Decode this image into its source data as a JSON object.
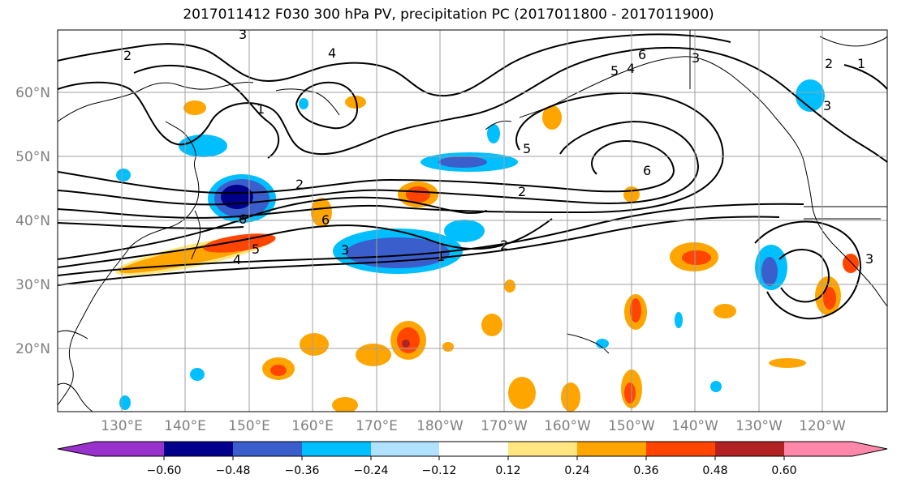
{
  "title": "2017011412 F030 300 hPa PV, precipitation PC (2017011800 - 2017011900)",
  "map": {
    "lat_labels": [
      "60°N",
      "50°N",
      "40°N",
      "30°N",
      "20°N"
    ],
    "lon_labels": [
      "130°E",
      "140°E",
      "150°E",
      "160°E",
      "170°E",
      "180°W",
      "170°W",
      "160°W",
      "150°W",
      "140°W",
      "130°W",
      "120°W"
    ],
    "pv_contour_labels": [
      "3",
      "2",
      "4",
      "1",
      "2",
      "6",
      "2",
      "6",
      "5",
      "4",
      "1",
      "3",
      "2",
      "4",
      "5",
      "6",
      "6",
      "3",
      "5",
      "3",
      "2",
      "1",
      "3"
    ],
    "colors": {
      "ocean": "#ffffff",
      "coast": "#000000",
      "grid": "#a0a0a0",
      "label_gray": "#808080"
    }
  },
  "colorbar": {
    "tick_labels": [
      "−0.60",
      "−0.48",
      "−0.36",
      "−0.24",
      "−0.12",
      "0.12",
      "0.24",
      "0.36",
      "0.48",
      "0.60"
    ],
    "colors": [
      "#9932cc",
      "#00008b",
      "#3a5fcd",
      "#00bfff",
      "#b0e2ff",
      "#ffffff",
      "#ffe680",
      "#ffa500",
      "#ff4500",
      "#b22222",
      "#ff88aa"
    ]
  }
}
